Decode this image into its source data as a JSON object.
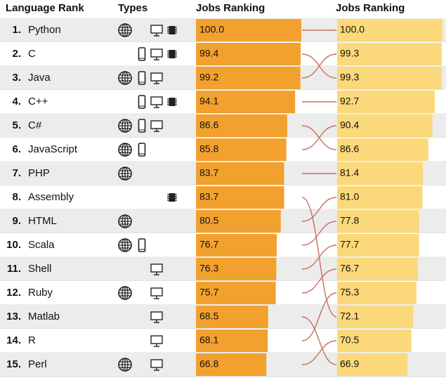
{
  "header": {
    "rank": "Language Rank",
    "types": "Types",
    "jobs": "Jobs Ranking",
    "jobs2": "Jobs Ranking"
  },
  "scale": [
    0,
    100
  ],
  "rows": [
    {
      "rank": "1.",
      "name": "Python",
      "types": [
        "web",
        "desktop",
        "embedded"
      ],
      "jobs": 100,
      "jobs_label": "100.0"
    },
    {
      "rank": "2.",
      "name": "C",
      "types": [
        "mobile",
        "desktop",
        "embedded"
      ],
      "jobs": 99.4,
      "jobs_label": "99.4"
    },
    {
      "rank": "3.",
      "name": "Java",
      "types": [
        "web",
        "mobile",
        "desktop"
      ],
      "jobs": 99.2,
      "jobs_label": "99.2"
    },
    {
      "rank": "4.",
      "name": "C++",
      "types": [
        "mobile",
        "desktop",
        "embedded"
      ],
      "jobs": 94.1,
      "jobs_label": "94.1"
    },
    {
      "rank": "5.",
      "name": "C#",
      "types": [
        "web",
        "mobile",
        "desktop"
      ],
      "jobs": 86.6,
      "jobs_label": "86.6"
    },
    {
      "rank": "6.",
      "name": "JavaScript",
      "types": [
        "web",
        "mobile"
      ],
      "jobs": 85.8,
      "jobs_label": "85.8"
    },
    {
      "rank": "7.",
      "name": "PHP",
      "types": [
        "web"
      ],
      "jobs": 83.7,
      "jobs_label": "83.7"
    },
    {
      "rank": "8.",
      "name": "Assembly",
      "types": [
        "embedded"
      ],
      "jobs": 83.7,
      "jobs_label": "83.7"
    },
    {
      "rank": "9.",
      "name": "HTML",
      "types": [
        "web"
      ],
      "jobs": 80.5,
      "jobs_label": "80.5"
    },
    {
      "rank": "10.",
      "name": "Scala",
      "types": [
        "web",
        "mobile"
      ],
      "jobs": 76.7,
      "jobs_label": "76.7"
    },
    {
      "rank": "11.",
      "name": "Shell",
      "types": [
        "desktop"
      ],
      "jobs": 76.3,
      "jobs_label": "76.3"
    },
    {
      "rank": "12.",
      "name": "Ruby",
      "types": [
        "web",
        "desktop"
      ],
      "jobs": 75.7,
      "jobs_label": "75.7"
    },
    {
      "rank": "13.",
      "name": "Matlab",
      "types": [
        "desktop"
      ],
      "jobs": 68.5,
      "jobs_label": "68.5"
    },
    {
      "rank": "14.",
      "name": "R",
      "types": [
        "desktop"
      ],
      "jobs": 68.1,
      "jobs_label": "68.1"
    },
    {
      "rank": "15.",
      "name": "Perl",
      "types": [
        "web",
        "desktop"
      ],
      "jobs": 66.8,
      "jobs_label": "66.8"
    }
  ],
  "right": [
    {
      "value": 100,
      "label": "100.0"
    },
    {
      "value": 99.3,
      "label": "99.3"
    },
    {
      "value": 99.3,
      "label": "99.3"
    },
    {
      "value": 92.7,
      "label": "92.7"
    },
    {
      "value": 90.4,
      "label": "90.4"
    },
    {
      "value": 86.6,
      "label": "86.6"
    },
    {
      "value": 81.4,
      "label": "81.4"
    },
    {
      "value": 81,
      "label": "81.0"
    },
    {
      "value": 77.8,
      "label": "77.8"
    },
    {
      "value": 77.7,
      "label": "77.7"
    },
    {
      "value": 76.7,
      "label": "76.7"
    },
    {
      "value": 75.3,
      "label": "75.3"
    },
    {
      "value": 72.1,
      "label": "72.1"
    },
    {
      "value": 70.5,
      "label": "70.5"
    },
    {
      "value": 66.9,
      "label": "66.9"
    }
  ],
  "links": [
    [
      0,
      0
    ],
    [
      1,
      2
    ],
    [
      2,
      1
    ],
    [
      3,
      3
    ],
    [
      4,
      5
    ],
    [
      5,
      4
    ],
    [
      6,
      6
    ],
    [
      7,
      12
    ],
    [
      8,
      7
    ],
    [
      9,
      8
    ],
    [
      10,
      9
    ],
    [
      11,
      10
    ],
    [
      12,
      14
    ],
    [
      13,
      11
    ],
    [
      14,
      13
    ]
  ]
}
